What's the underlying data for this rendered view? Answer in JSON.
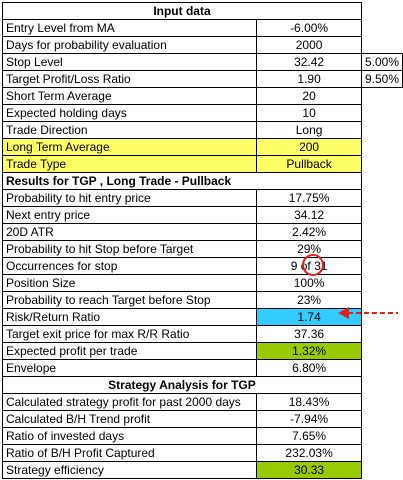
{
  "sections": {
    "input": "Input data",
    "results": "Results for TGP , Long Trade - Pullback",
    "strategy": "Strategy Analysis for TGP"
  },
  "rows": {
    "entry_level": {
      "label": "Entry Level from MA",
      "value": "-6.00%"
    },
    "days_prob": {
      "label": "Days for probability evaluation",
      "value": "2000"
    },
    "stop_level": {
      "label": "Stop Level",
      "value": "32.42",
      "extra": "5.00%"
    },
    "target_ratio": {
      "label": "Target Profit/Loss Ratio",
      "value": "1.90",
      "extra": "9.50%"
    },
    "short_avg": {
      "label": "Short Term Average",
      "value": "20"
    },
    "holding_days": {
      "label": "Expected holding days",
      "value": "10"
    },
    "trade_direction": {
      "label": "Trade Direction",
      "value": "Long"
    },
    "long_avg": {
      "label": "Long Term Average",
      "value": "200"
    },
    "trade_type": {
      "label": "Trade Type",
      "value": "Pullback"
    },
    "prob_entry": {
      "label": "Probability to hit entry price",
      "value": "17.75%"
    },
    "next_entry": {
      "label": "Next entry price",
      "value": "34.12"
    },
    "atr": {
      "label": "20D ATR",
      "value": "2.42%"
    },
    "prob_stop": {
      "label": "Probability to hit Stop before Target",
      "value": "29%"
    },
    "occurrences": {
      "label": "Occurrences for stop",
      "value_a": "9",
      "value_of": "of",
      "value_b": "31"
    },
    "position_size": {
      "label": "Position Size",
      "value": "100%"
    },
    "prob_target": {
      "label": "Probability to reach Target before Stop",
      "value": "23%"
    },
    "risk_return": {
      "label": "Risk/Return Ratio",
      "value": "1.74"
    },
    "target_exit": {
      "label": "Target exit price for max R/R Ratio",
      "value": "37.36"
    },
    "expected_profit": {
      "label": "Expected profit per trade",
      "value": "1.32%"
    },
    "envelope": {
      "label": "Envelope",
      "value": "6.80%"
    },
    "calc_profit": {
      "label": "Calculated strategy profit for past 2000 days",
      "value": "18.43%"
    },
    "bh_profit": {
      "label": "Calculated B/H Trend profit",
      "value": "-7.94%"
    },
    "invested_days": {
      "label": "Ratio of invested days",
      "value": "7.65%"
    },
    "bh_captured": {
      "label": "Ratio of B/H Profit Captured",
      "value": "232.03%"
    },
    "efficiency": {
      "label": "Strategy efficiency",
      "value": "30.33"
    }
  },
  "colors": {
    "highlight_yellow": "#ffff66",
    "highlight_green": "#99cc00",
    "highlight_cyan": "#33ccff",
    "annotation_red": "#e02020"
  }
}
